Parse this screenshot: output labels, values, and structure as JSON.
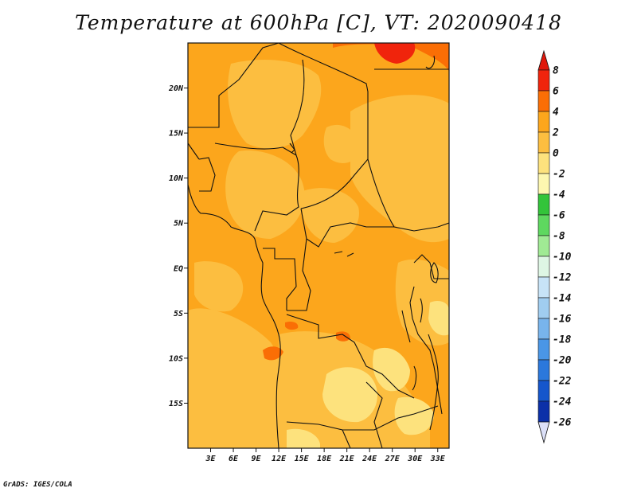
{
  "title": "Temperature at 600hPa [C], VT: 2020090418",
  "credit": "GrADS: IGES/COLA",
  "map": {
    "lon_range": [
      0,
      34.5
    ],
    "lat_range": [
      -20,
      25
    ],
    "field_base_color": "#fca61c",
    "x_ticks": [
      {
        "value": 3,
        "label": "3E"
      },
      {
        "value": 6,
        "label": "6E"
      },
      {
        "value": 9,
        "label": "9E"
      },
      {
        "value": 12,
        "label": "12E"
      },
      {
        "value": 15,
        "label": "15E"
      },
      {
        "value": 18,
        "label": "18E"
      },
      {
        "value": 21,
        "label": "21E"
      },
      {
        "value": 24,
        "label": "24E"
      },
      {
        "value": 27,
        "label": "27E"
      },
      {
        "value": 30,
        "label": "30E"
      },
      {
        "value": 33,
        "label": "33E"
      }
    ],
    "y_ticks": [
      {
        "value": 20,
        "label": "20N"
      },
      {
        "value": 15,
        "label": "15N"
      },
      {
        "value": 10,
        "label": "10N"
      },
      {
        "value": 5,
        "label": "5N"
      },
      {
        "value": 0,
        "label": "EQ"
      },
      {
        "value": -5,
        "label": "5S"
      },
      {
        "value": -10,
        "label": "10S"
      },
      {
        "value": -15,
        "label": "15S"
      }
    ]
  },
  "colorbar": {
    "labels": [
      "8",
      "6",
      "4",
      "2",
      "0",
      "-2",
      "-4",
      "-6",
      "-8",
      "-10",
      "-12",
      "-14",
      "-16",
      "-18",
      "-20",
      "-22",
      "-24",
      "-26"
    ],
    "colors": [
      "#f0240c",
      "#fa6e05",
      "#fca61c",
      "#fcbe40",
      "#fde27d",
      "#fdf7b0",
      "#33c43a",
      "#5ed85f",
      "#a0ea94",
      "#def6e4",
      "#c7e3f7",
      "#a0cdf0",
      "#78b4ec",
      "#4a96e6",
      "#2b78dc",
      "#1556cc",
      "#0c30a8",
      "#02045f"
    ],
    "top_arrow_color": "#e0180c",
    "bottom_arrow_color": "#dce0f8"
  }
}
